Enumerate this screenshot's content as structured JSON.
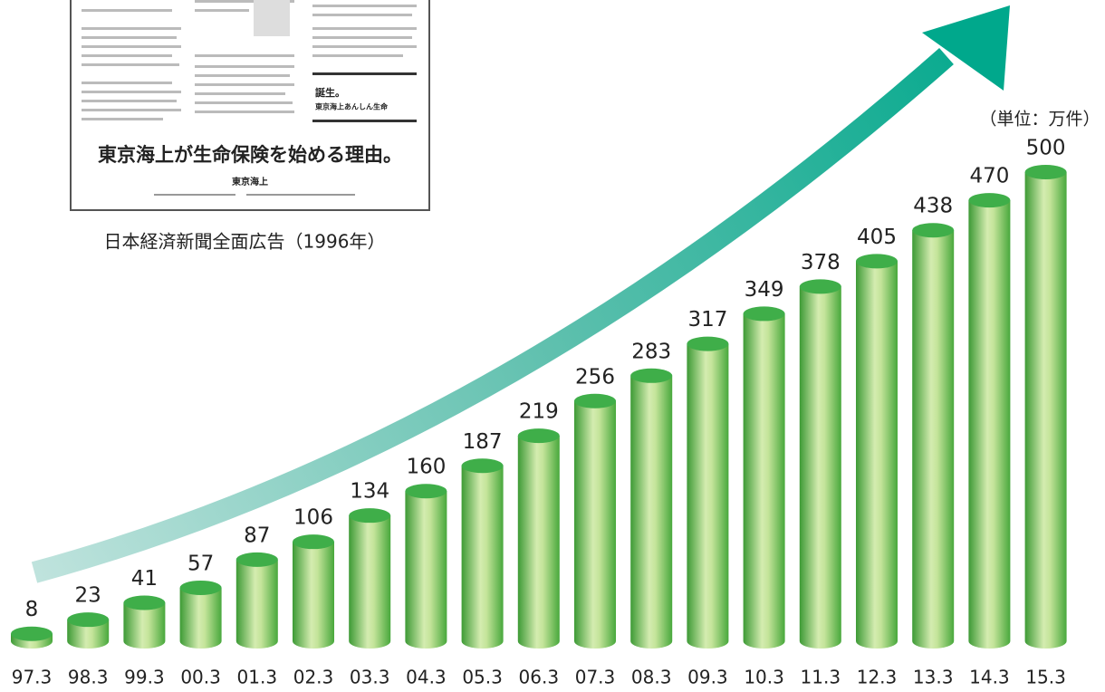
{
  "chart_data": {
    "type": "bar",
    "categories": [
      "97.3",
      "98.3",
      "99.3",
      "00.3",
      "01.3",
      "02.3",
      "03.3",
      "04.3",
      "05.3",
      "06.3",
      "07.3",
      "08.3",
      "09.3",
      "10.3",
      "11.3",
      "12.3",
      "13.3",
      "14.3",
      "15.3"
    ],
    "values": [
      8,
      23,
      41,
      57,
      87,
      106,
      134,
      160,
      187,
      219,
      256,
      283,
      317,
      349,
      378,
      405,
      438,
      470,
      500
    ],
    "color": "#3fae49",
    "unit_label": "（単位：万件）",
    "inset_caption": "日本経済新聞全面広告（1996年）",
    "inset_headline": "東京海上が生命保険を始める理由。",
    "inset_brand": "東京海上",
    "inset_tagline": [
      "誕生。",
      "東京海上あんしん生命"
    ]
  }
}
